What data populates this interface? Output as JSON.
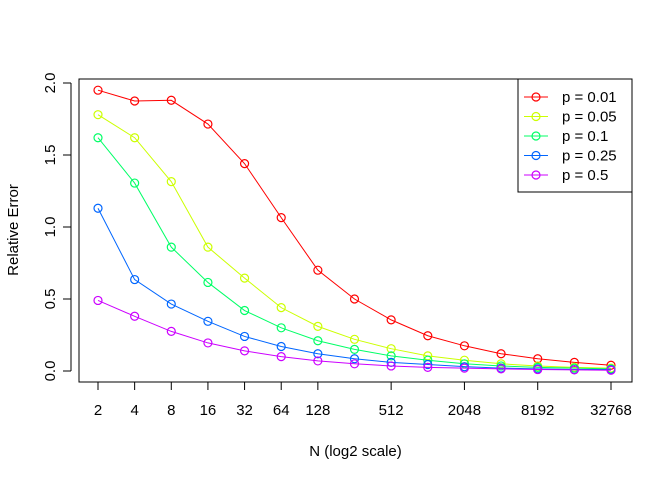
{
  "chart_data": {
    "type": "line",
    "xlabel": "N (log2 scale)",
    "ylabel": "Relative Error",
    "x_scale": "log2",
    "x": [
      2,
      4,
      8,
      16,
      32,
      64,
      128,
      256,
      512,
      1024,
      2048,
      4096,
      8192,
      16384,
      32768
    ],
    "x_tick_values": [
      2,
      4,
      8,
      16,
      32,
      64,
      128,
      512,
      2048,
      8192,
      32768
    ],
    "x_tick_labels": [
      "2",
      "4",
      "8",
      "16",
      "32",
      "64",
      "128",
      "512",
      "2048",
      "8192",
      "32768"
    ],
    "ylim": [
      0,
      2
    ],
    "y_ticks": [
      0.0,
      0.5,
      1.0,
      1.5,
      2.0
    ],
    "y_tick_labels": [
      "0.0",
      "0.5",
      "1.0",
      "1.5",
      "2.0"
    ],
    "grid": false,
    "legend_position": "top-right",
    "series": [
      {
        "name": "p = 0.01",
        "color": "#ff0000",
        "values": [
          1.95,
          1.875,
          1.88,
          1.715,
          1.44,
          1.065,
          0.7,
          0.5,
          0.355,
          0.245,
          0.175,
          0.12,
          0.085,
          0.06,
          0.04
        ]
      },
      {
        "name": "p = 0.05",
        "color": "#ccff00",
        "values": [
          1.78,
          1.62,
          1.315,
          0.86,
          0.645,
          0.44,
          0.31,
          0.22,
          0.155,
          0.105,
          0.075,
          0.05,
          0.035,
          0.025,
          0.02
        ]
      },
      {
        "name": "p = 0.1",
        "color": "#00ff66",
        "values": [
          1.62,
          1.305,
          0.86,
          0.615,
          0.42,
          0.3,
          0.21,
          0.15,
          0.105,
          0.075,
          0.05,
          0.035,
          0.025,
          0.02,
          0.015
        ]
      },
      {
        "name": "p = 0.25",
        "color": "#0066ff",
        "values": [
          1.13,
          0.635,
          0.465,
          0.345,
          0.24,
          0.17,
          0.12,
          0.085,
          0.06,
          0.045,
          0.03,
          0.02,
          0.015,
          0.01,
          0.01
        ]
      },
      {
        "name": "p = 0.5",
        "color": "#cc00ff",
        "values": [
          0.49,
          0.38,
          0.275,
          0.195,
          0.14,
          0.1,
          0.07,
          0.05,
          0.035,
          0.025,
          0.02,
          0.015,
          0.01,
          0.008,
          0.005
        ]
      }
    ]
  }
}
